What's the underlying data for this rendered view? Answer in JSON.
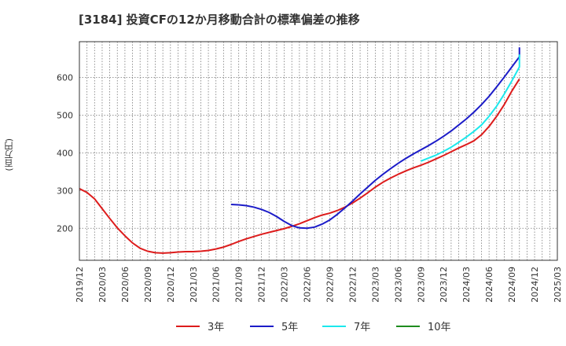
{
  "title": "[3184]  投資CFの12か月移動合計の標準偏差の推移",
  "chart_data": {
    "type": "line",
    "title": "[3184]  投資CFの12か月移動合計の標準偏差の推移",
    "ylabel": "(百万円)",
    "xlabel": "",
    "ylim": [
      115,
      695
    ],
    "yticks": [
      200,
      300,
      400,
      500,
      600
    ],
    "xlim": [
      "2019-12",
      "2025-03"
    ],
    "xticks": [
      "2019/12",
      "2020/03",
      "2020/06",
      "2020/09",
      "2020/12",
      "2021/03",
      "2021/06",
      "2021/09",
      "2021/12",
      "2022/03",
      "2022/06",
      "2022/09",
      "2022/12",
      "2023/03",
      "2023/06",
      "2023/09",
      "2023/12",
      "2024/03",
      "2024/06",
      "2024/09",
      "2024/12",
      "2025/03"
    ],
    "grid": true,
    "legend_position": "bottom",
    "series": [
      {
        "name": "3年",
        "color": "#dd1c1c",
        "points": [
          [
            "2019-12",
            305
          ],
          [
            "2020-01",
            295
          ],
          [
            "2020-02",
            278
          ],
          [
            "2020-03",
            252
          ],
          [
            "2020-04",
            226
          ],
          [
            "2020-05",
            201
          ],
          [
            "2020-06",
            180
          ],
          [
            "2020-07",
            161
          ],
          [
            "2020-08",
            147
          ],
          [
            "2020-09",
            139
          ],
          [
            "2020-10",
            135
          ],
          [
            "2020-11",
            134
          ],
          [
            "2020-12",
            135
          ],
          [
            "2021-01",
            137
          ],
          [
            "2021-02",
            138
          ],
          [
            "2021-03",
            138
          ],
          [
            "2021-04",
            139
          ],
          [
            "2021-05",
            141
          ],
          [
            "2021-06",
            145
          ],
          [
            "2021-07",
            150
          ],
          [
            "2021-08",
            157
          ],
          [
            "2021-09",
            165
          ],
          [
            "2021-10",
            172
          ],
          [
            "2021-11",
            178
          ],
          [
            "2021-12",
            184
          ],
          [
            "2022-01",
            189
          ],
          [
            "2022-02",
            194
          ],
          [
            "2022-03",
            199
          ],
          [
            "2022-04",
            205
          ],
          [
            "2022-05",
            212
          ],
          [
            "2022-06",
            220
          ],
          [
            "2022-07",
            228
          ],
          [
            "2022-08",
            235
          ],
          [
            "2022-09",
            240
          ],
          [
            "2022-10",
            247
          ],
          [
            "2022-11",
            256
          ],
          [
            "2022-12",
            267
          ],
          [
            "2023-01",
            280
          ],
          [
            "2023-02",
            294
          ],
          [
            "2023-03",
            309
          ],
          [
            "2023-04",
            322
          ],
          [
            "2023-05",
            333
          ],
          [
            "2023-06",
            343
          ],
          [
            "2023-07",
            352
          ],
          [
            "2023-08",
            360
          ],
          [
            "2023-09",
            367
          ],
          [
            "2023-10",
            375
          ],
          [
            "2023-11",
            384
          ],
          [
            "2023-12",
            393
          ],
          [
            "2024-01",
            403
          ],
          [
            "2024-02",
            413
          ],
          [
            "2024-03",
            422
          ],
          [
            "2024-04",
            432
          ],
          [
            "2024-05",
            448
          ],
          [
            "2024-06",
            470
          ],
          [
            "2024-07",
            497
          ],
          [
            "2024-08",
            528
          ],
          [
            "2024-09",
            564
          ],
          [
            "2024-10",
            596
          ]
        ]
      },
      {
        "name": "5年",
        "color": "#1c1cc8",
        "points": [
          [
            "2021-08",
            263
          ],
          [
            "2021-09",
            262
          ],
          [
            "2021-10",
            260
          ],
          [
            "2021-11",
            256
          ],
          [
            "2021-12",
            250
          ],
          [
            "2022-01",
            242
          ],
          [
            "2022-02",
            231
          ],
          [
            "2022-03",
            218
          ],
          [
            "2022-04",
            207
          ],
          [
            "2022-05",
            201
          ],
          [
            "2022-06",
            200
          ],
          [
            "2022-07",
            203
          ],
          [
            "2022-08",
            211
          ],
          [
            "2022-09",
            222
          ],
          [
            "2022-10",
            237
          ],
          [
            "2022-11",
            254
          ],
          [
            "2022-12",
            272
          ],
          [
            "2023-01",
            291
          ],
          [
            "2023-02",
            309
          ],
          [
            "2023-03",
            327
          ],
          [
            "2023-04",
            343
          ],
          [
            "2023-05",
            358
          ],
          [
            "2023-06",
            372
          ],
          [
            "2023-07",
            385
          ],
          [
            "2023-08",
            397
          ],
          [
            "2023-09",
            408
          ],
          [
            "2023-10",
            419
          ],
          [
            "2023-11",
            431
          ],
          [
            "2023-12",
            444
          ],
          [
            "2024-01",
            458
          ],
          [
            "2024-02",
            474
          ],
          [
            "2024-03",
            490
          ],
          [
            "2024-04",
            508
          ],
          [
            "2024-05",
            528
          ],
          [
            "2024-06",
            550
          ],
          [
            "2024-07",
            575
          ],
          [
            "2024-08",
            601
          ],
          [
            "2024-09",
            628
          ],
          [
            "2024-10",
            655
          ],
          [
            "2024-10",
            680
          ]
        ]
      },
      {
        "name": "7年",
        "color": "#1ce8ec",
        "points": [
          [
            "2023-09",
            378
          ],
          [
            "2023-10",
            386
          ],
          [
            "2023-11",
            394
          ],
          [
            "2023-12",
            404
          ],
          [
            "2024-01",
            415
          ],
          [
            "2024-02",
            428
          ],
          [
            "2024-03",
            442
          ],
          [
            "2024-04",
            457
          ],
          [
            "2024-05",
            474
          ],
          [
            "2024-06",
            497
          ],
          [
            "2024-07",
            524
          ],
          [
            "2024-08",
            556
          ],
          [
            "2024-09",
            591
          ],
          [
            "2024-10",
            628
          ],
          [
            "2024-10",
            661
          ]
        ]
      },
      {
        "name": "10年",
        "color": "#1e8c1e",
        "points": []
      }
    ]
  }
}
